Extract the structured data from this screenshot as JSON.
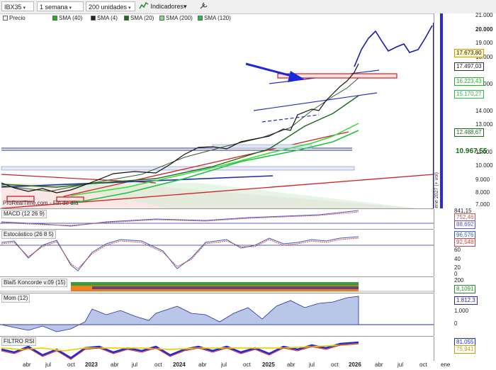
{
  "toolbar": {
    "symbol": "IBX35",
    "period": "1 semana",
    "units": "200 unidades",
    "indicators_label": "Indicadores"
  },
  "legend": [
    {
      "label": "Precio",
      "color": "#e8e8e8"
    },
    {
      "label": "SMA (40)",
      "color": "#22b022"
    },
    {
      "label": "SMA (4)",
      "color": "#222222"
    },
    {
      "label": "SMA (20)",
      "color": "#1a6b1a"
    },
    {
      "label": "SMA (200)",
      "color": "#80e080"
    },
    {
      "label": "SMA (120)",
      "color": "#20c040"
    }
  ],
  "price_axis": {
    "ticks": [
      "21.000",
      "20.000",
      "19.000",
      "18.000",
      "17.000",
      "16.000",
      "15.000",
      "14.000",
      "13.000",
      "12.000",
      "11.000",
      "10.000",
      "9.000",
      "8.000",
      "7.000"
    ],
    "tags": [
      {
        "text": "17.673,80",
        "color": "#c8a000"
      },
      {
        "text": "17.497,03",
        "color": "#222222"
      },
      {
        "text": "16.223,43",
        "color": "#22b022"
      },
      {
        "text": "15.170,27",
        "color": "#20c040"
      },
      {
        "text": "12.488,67",
        "color": "#1a6b1a"
      },
      {
        "text": "10.967,55",
        "color": "#1a6b1a"
      }
    ],
    "vertical_note": "ene 2027 (+ vol)"
  },
  "watermark": "ProRealTime.com - Fin de día",
  "macd": {
    "title": "MACD (12 26 9)",
    "values": [
      "841,15",
      "752,46",
      "88,692"
    ]
  },
  "stochastic": {
    "title": "Estocástico (26 8 5)",
    "values": [
      "96,576",
      "92,548"
    ],
    "ticks": [
      "100",
      "80",
      "60",
      "40",
      "20",
      "0"
    ]
  },
  "koncorde": {
    "title": "Blai5 Koncorde v.09 (15)",
    "values": [
      "200",
      "8,1091"
    ]
  },
  "momentum": {
    "title": "Mom (12)",
    "values": [
      "1.812,3",
      "1.000",
      "0"
    ]
  },
  "filtro": {
    "title": "FILTRO RSI",
    "values": [
      "81,055",
      "75,941"
    ]
  },
  "x_axis": [
    {
      "label": "abr"
    },
    {
      "label": "jul"
    },
    {
      "label": "oct"
    },
    {
      "label": "2023"
    },
    {
      "label": "abr"
    },
    {
      "label": "jul"
    },
    {
      "label": "oct"
    },
    {
      "label": "2024"
    },
    {
      "label": "abr"
    },
    {
      "label": "jul"
    },
    {
      "label": "oct"
    },
    {
      "label": "2025"
    },
    {
      "label": "abr"
    },
    {
      "label": "jul"
    },
    {
      "label": "oct"
    },
    {
      "label": "2026"
    },
    {
      "label": "abr"
    },
    {
      "label": "jul"
    },
    {
      "label": "oct"
    },
    {
      "label": "ene"
    }
  ]
}
